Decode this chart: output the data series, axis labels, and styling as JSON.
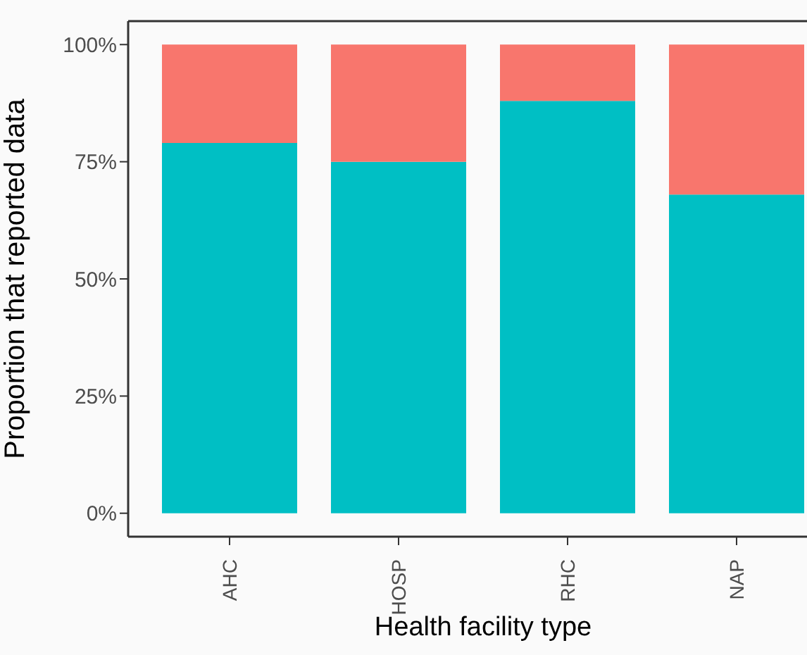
{
  "chart_data": {
    "type": "bar",
    "stacked": true,
    "xlabel": "Health facility type",
    "ylabel": "Proportion that reported data",
    "categories": [
      "AHC",
      "HOSP",
      "RHC",
      "NAP"
    ],
    "series": [
      {
        "color": "#00bfc4",
        "values": [
          79,
          75,
          88,
          68
        ]
      },
      {
        "color": "#f8766d",
        "values": [
          21,
          25,
          12,
          32
        ]
      }
    ],
    "ylim": [
      -5,
      105
    ],
    "yticks": [
      {
        "value": 0,
        "label": "0%"
      },
      {
        "value": 25,
        "label": "25%"
      },
      {
        "value": 50,
        "label": "50%"
      },
      {
        "value": 75,
        "label": "75%"
      },
      {
        "value": 100,
        "label": "100%"
      }
    ]
  }
}
